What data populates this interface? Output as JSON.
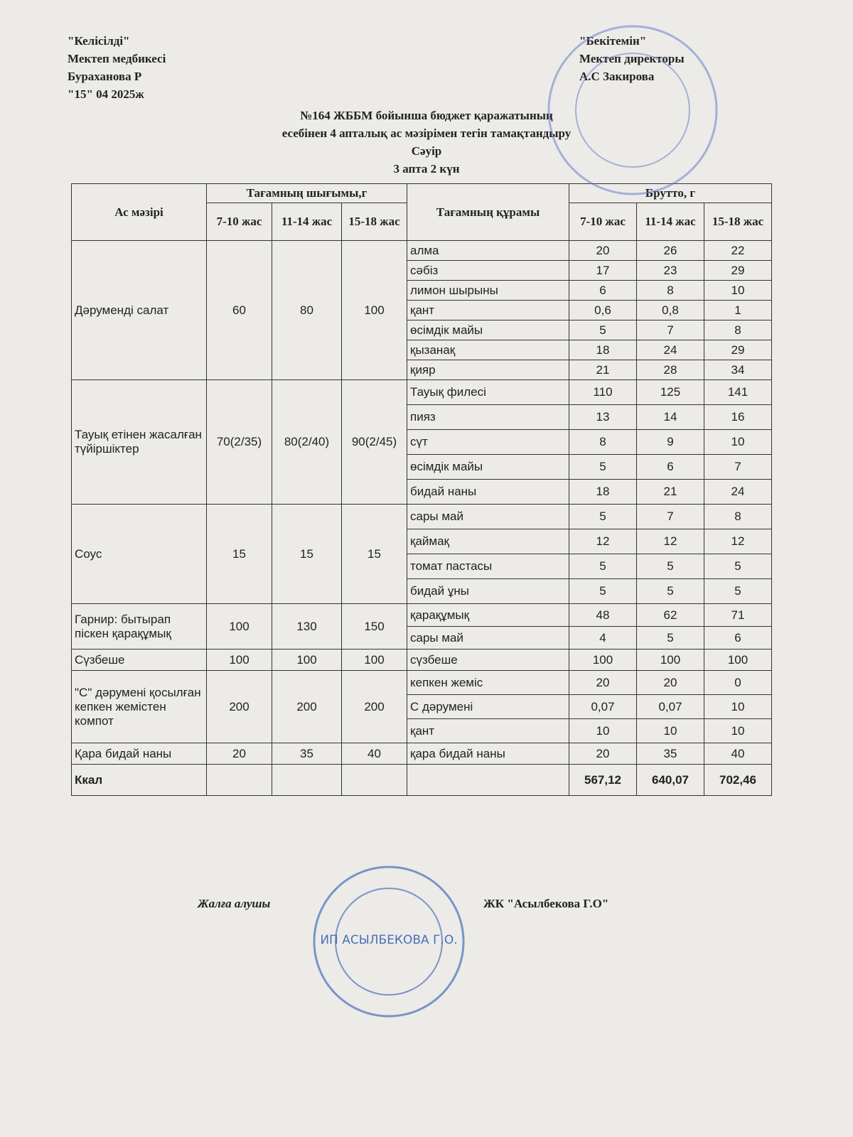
{
  "header": {
    "left": [
      "\"Келісілді\"",
      "Мектеп медбикесі",
      "Бураханова Р",
      "\"15\" 04 2025ж"
    ],
    "right": [
      "\"Бекітемін\"",
      "Мектеп директоры",
      "А.С Закирова"
    ],
    "title": [
      "№164 ЖББМ бойынша бюджет қаражатының",
      "есебінен 4 апталық ас мәзірімен тегін тамақтандыру",
      "Сәуір",
      "3 апта 2 күн"
    ]
  },
  "table": {
    "head": {
      "dish": "Ас мәзірі",
      "yield": "Тағамның шығымы,г",
      "composition": "Тағамның құрамы",
      "brutto": "Брутто, г",
      "ages": [
        "7-10 жас",
        "11-14 жас",
        "15-18 жас"
      ]
    },
    "groups": [
      {
        "dish": "Дәруменді салат",
        "yield": [
          "60",
          "80",
          "100"
        ],
        "items": [
          [
            "алма",
            "20",
            "26",
            "22"
          ],
          [
            "сәбіз",
            "17",
            "23",
            "29"
          ],
          [
            "лимон шырыны",
            "6",
            "8",
            "10"
          ],
          [
            "қант",
            "0,6",
            "0,8",
            "1"
          ],
          [
            "өсімдік майы",
            "5",
            "7",
            "8"
          ],
          [
            "қызанақ",
            "18",
            "24",
            "29"
          ],
          [
            "қияр",
            "21",
            "28",
            "34"
          ]
        ]
      },
      {
        "dish": "Тауық етінен жасалған түйіршіктер",
        "yield": [
          "70(2/35)",
          "80(2/40)",
          "90(2/45)"
        ],
        "items": [
          [
            "Тауық филесі",
            "110",
            "125",
            "141"
          ],
          [
            "пияз",
            "13",
            "14",
            "16"
          ],
          [
            "сүт",
            "8",
            "9",
            "10"
          ],
          [
            "өсімдік майы",
            "5",
            "6",
            "7"
          ],
          [
            "бидай наны",
            "18",
            "21",
            "24"
          ]
        ]
      },
      {
        "dish": "Соус",
        "yield": [
          "15",
          "15",
          "15"
        ],
        "items": [
          [
            "сары май",
            "5",
            "7",
            "8"
          ],
          [
            "қаймақ",
            "12",
            "12",
            "12"
          ],
          [
            "томат пастасы",
            "5",
            "5",
            "5"
          ],
          [
            "бидай ұны",
            "5",
            "5",
            "5"
          ]
        ]
      },
      {
        "dish": "Гарнир: бытырап піскен қарақұмық",
        "yield": [
          "100",
          "130",
          "150"
        ],
        "items": [
          [
            "қарақұмық",
            "48",
            "62",
            "71"
          ],
          [
            "сары май",
            "4",
            "5",
            "6"
          ]
        ]
      },
      {
        "dish": "Сүзбеше",
        "yield": [
          "100",
          "100",
          "100"
        ],
        "items": [
          [
            "сүзбеше",
            "100",
            "100",
            "100"
          ]
        ]
      },
      {
        "dish": "\"С\" дәрумені қосылған кепкен жемістен компот",
        "yield": [
          "200",
          "200",
          "200"
        ],
        "items": [
          [
            "кепкен жеміс",
            "20",
            "20",
            "0"
          ],
          [
            "С дәрумені",
            "0,07",
            "0,07",
            "10"
          ],
          [
            "қант",
            "10",
            "10",
            "10"
          ]
        ]
      },
      {
        "dish": "Қара бидай наны",
        "yield": [
          "20",
          "35",
          "40"
        ],
        "items": [
          [
            "қара бидай наны",
            "20",
            "35",
            "40"
          ]
        ]
      }
    ],
    "total": {
      "label": "Ккал",
      "values": [
        "567,12",
        "640,07",
        "702,46"
      ]
    }
  },
  "footer": {
    "left": "Жалға алушы",
    "right": "ЖК \"Асылбекова Г.О\"",
    "stamp": "ИП АСЫЛБЕКОВА Г.О."
  }
}
